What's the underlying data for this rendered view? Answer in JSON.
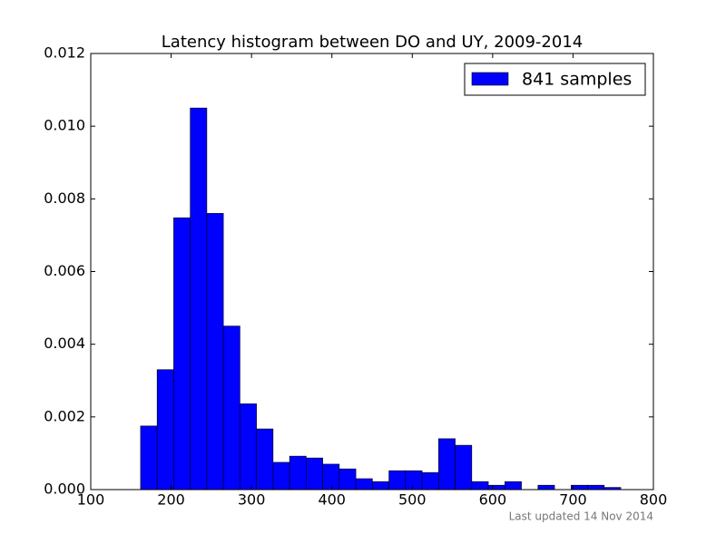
{
  "chart_data": {
    "type": "histogram",
    "title": "Latency histogram between DO and UY, 2009-2014",
    "bins": [
      162.0,
      182.6,
      203.2,
      223.8,
      244.4,
      265.0,
      285.6,
      306.2,
      326.8,
      347.4,
      368.0,
      388.6,
      409.2,
      429.8,
      450.4,
      471.0,
      491.6,
      512.2,
      532.8,
      553.4,
      574.0,
      594.6,
      615.2,
      635.8,
      656.4,
      677.0,
      697.6,
      718.2,
      738.8,
      759.4
    ],
    "series": [
      {
        "name": "841 samples",
        "color": "#0000ff",
        "values": [
          0.00175,
          0.0033,
          0.00748,
          0.0105,
          0.0076,
          0.0045,
          0.00236,
          0.00167,
          0.00075,
          0.00092,
          0.00087,
          0.0007,
          0.00057,
          0.0003,
          0.00022,
          0.00052,
          0.00052,
          0.00047,
          0.0014,
          0.00122,
          0.00022,
          0.00012,
          0.00022,
          0,
          0.00012,
          0,
          0.00012,
          0.00012,
          6e-05
        ]
      }
    ],
    "xlim": [
      100,
      800
    ],
    "xticks": [
      100,
      200,
      300,
      400,
      500,
      600,
      700,
      800
    ],
    "ylim": [
      0,
      0.012
    ],
    "yticks": [
      {
        "value": 0,
        "label": "0.000"
      },
      {
        "value": 0.002,
        "label": "0.002"
      },
      {
        "value": 0.004,
        "label": "0.004"
      },
      {
        "value": 0.006,
        "label": "0.006"
      },
      {
        "value": 0.008,
        "label": "0.008"
      },
      {
        "value": 0.01,
        "label": "0.010"
      },
      {
        "value": 0.012,
        "label": "0.012"
      }
    ],
    "legend": "upper right",
    "footnote": "Last updated 14 Nov 2014"
  }
}
